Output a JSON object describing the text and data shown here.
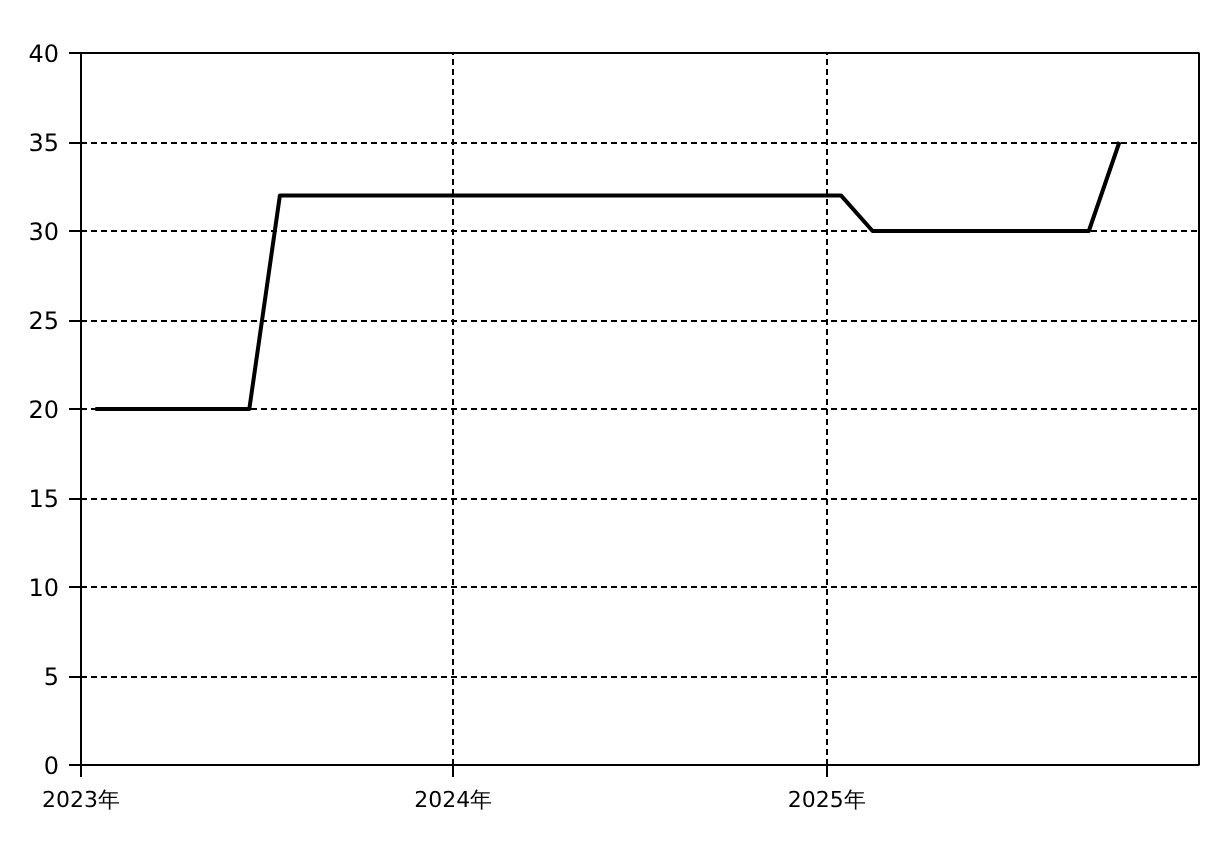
{
  "chart_data": {
    "type": "line",
    "x": [
      "2023-01-15",
      "2023-06-15",
      "2023-07-15",
      "2025-01-15",
      "2025-02-15",
      "2025-09-15",
      "2025-10-15"
    ],
    "series": [
      {
        "color": "#000000",
        "values": [
          20,
          20,
          32,
          32,
          30,
          30,
          35
        ]
      }
    ],
    "xlim": [
      "2023-01-01",
      "2026-01-01"
    ],
    "xticks": [
      {
        "value": "2023-01-01",
        "label": "2023年"
      },
      {
        "value": "2024-01-01",
        "label": "2024年"
      },
      {
        "value": "2025-01-01",
        "label": "2025年"
      }
    ],
    "ylim": [
      0,
      40
    ],
    "yticks": [
      0,
      5,
      10,
      15,
      20,
      25,
      30,
      35,
      40
    ],
    "grid": true,
    "marker": "none",
    "line_style": "solid"
  }
}
